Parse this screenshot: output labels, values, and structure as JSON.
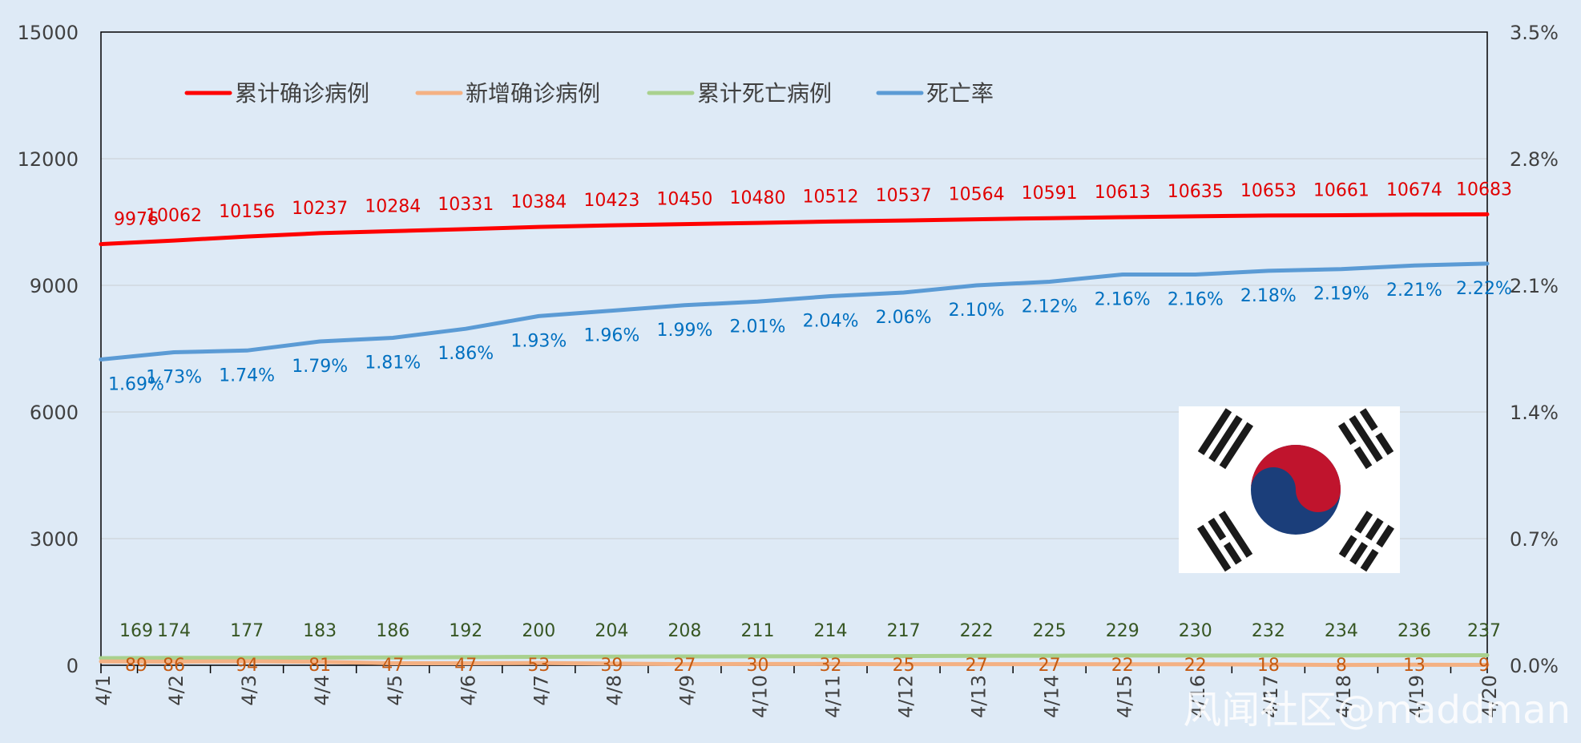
{
  "watermark": "风闻社区@maddman",
  "chart_data": {
    "type": "line",
    "categories": [
      "4/1",
      "4/2",
      "4/3",
      "4/4",
      "4/5",
      "4/6",
      "4/7",
      "4/8",
      "4/9",
      "4/10",
      "4/11",
      "4/12",
      "4/13",
      "4/14",
      "4/15",
      "4/16",
      "4/17",
      "4/18",
      "4/19",
      "4/20"
    ],
    "y_left": {
      "min": 0,
      "max": 15000,
      "ticks": [
        "0",
        "3000",
        "6000",
        "9000",
        "12000",
        "15000"
      ]
    },
    "y_right": {
      "min": 0,
      "max": 3.5,
      "ticks": [
        "0.0%",
        "0.7%",
        "1.4%",
        "2.1%",
        "2.8%",
        "3.5%"
      ]
    },
    "grid": true,
    "legend_position": "top-left",
    "series": [
      {
        "key": "cumulative",
        "name": "累计确诊病例",
        "axis": "left",
        "color": "#ff0000",
        "label_color": "#e00000",
        "values": [
          9976,
          10062,
          10156,
          10237,
          10284,
          10331,
          10384,
          10423,
          10450,
          10480,
          10512,
          10537,
          10564,
          10591,
          10613,
          10635,
          10653,
          10661,
          10674,
          10683
        ],
        "labels": [
          "9976",
          "10062",
          "10156",
          "10237",
          "10284",
          "10331",
          "10384",
          "10423",
          "10450",
          "10480",
          "10512",
          "10537",
          "10564",
          "10591",
          "10613",
          "10635",
          "10653",
          "10661",
          "10674",
          "10683"
        ]
      },
      {
        "key": "new",
        "name": "新增确诊病例",
        "axis": "left",
        "color": "#f4b183",
        "label_color": "#c55a11",
        "values": [
          89,
          86,
          94,
          81,
          47,
          47,
          53,
          39,
          27,
          30,
          32,
          25,
          27,
          27,
          22,
          22,
          18,
          8,
          13,
          9
        ],
        "labels": [
          "89",
          "86",
          "94",
          "81",
          "47",
          "47",
          "53",
          "39",
          "27",
          "30",
          "32",
          "25",
          "27",
          "27",
          "22",
          "22",
          "18",
          "8",
          "13",
          "9"
        ]
      },
      {
        "key": "deaths",
        "name": "累计死亡病例",
        "axis": "left",
        "color": "#a9d18e",
        "label_color": "#375623",
        "values": [
          169,
          174,
          177,
          183,
          186,
          192,
          200,
          204,
          208,
          211,
          214,
          217,
          222,
          225,
          229,
          230,
          232,
          234,
          236,
          237
        ],
        "labels": [
          "169",
          "174",
          "177",
          "183",
          "186",
          "192",
          "200",
          "204",
          "208",
          "211",
          "214",
          "217",
          "222",
          "225",
          "229",
          "230",
          "232",
          "234",
          "236",
          "237"
        ]
      },
      {
        "key": "rate",
        "name": "死亡率",
        "axis": "right",
        "color": "#5b9bd5",
        "label_color": "#0070c0",
        "values": [
          1.69,
          1.73,
          1.74,
          1.79,
          1.81,
          1.86,
          1.93,
          1.96,
          1.99,
          2.01,
          2.04,
          2.06,
          2.1,
          2.12,
          2.16,
          2.16,
          2.18,
          2.19,
          2.21,
          2.22
        ],
        "labels": [
          "1.69%",
          "1.73%",
          "1.74%",
          "1.79%",
          "1.81%",
          "1.86%",
          "1.93%",
          "1.96%",
          "1.99%",
          "2.01%",
          "2.04%",
          "2.06%",
          "2.10%",
          "2.12%",
          "2.16%",
          "2.16%",
          "2.18%",
          "2.19%",
          "2.21%",
          "2.22%"
        ]
      }
    ]
  }
}
